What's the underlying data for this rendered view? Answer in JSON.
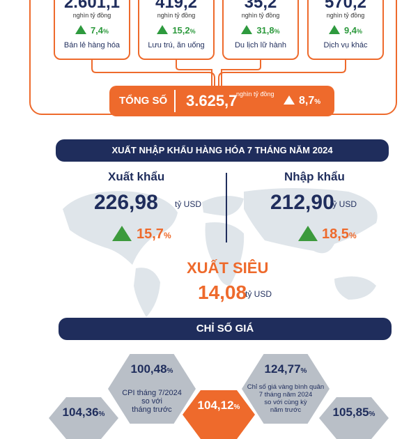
{
  "retail": {
    "items": [
      {
        "value": "2.601,1",
        "unit": "nghìn tỷ đồng",
        "growth": "7,4",
        "pct": "%",
        "label": "Bán lẻ hàng hóa"
      },
      {
        "value": "419,2",
        "unit": "nghìn tỷ đồng",
        "growth": "15,2",
        "pct": "%",
        "label": "Lưu trú, ăn uống"
      },
      {
        "value": "35,2",
        "unit": "nghìn tỷ đồng",
        "growth": "31,8",
        "pct": "%",
        "label": "Du lịch lữ hành"
      },
      {
        "value": "570,2",
        "unit": "nghìn tỷ đồng",
        "growth": "9,4",
        "pct": "%",
        "label": "Dịch vụ khác"
      }
    ],
    "total": {
      "label": "TỔNG SỐ",
      "value": "3.625,7",
      "unit": "nghìn tỷ đồng",
      "growth": "8,7",
      "pct": "%"
    }
  },
  "trade": {
    "title": "XUẤT NHẬP KHẨU HÀNG HÓA 7 THÁNG NĂM 2024",
    "export": {
      "label": "Xuất khẩu",
      "value": "226,98",
      "unit": "tỷ USD",
      "growth": "15,7",
      "pct": "%"
    },
    "import": {
      "label": "Nhập khẩu",
      "value": "212,90",
      "unit": "tỷ USD",
      "growth": "18,5",
      "pct": "%"
    },
    "surplus": {
      "label": "XUẤT SIÊU",
      "value": "14,08",
      "unit": "tỷ USD"
    }
  },
  "prices": {
    "title": "CHỈ SỐ GIÁ",
    "cpi_month": {
      "value": "100,48",
      "pct": "%",
      "line1": "CPI tháng 7/2024",
      "line2": "so với",
      "line3": "tháng trước"
    },
    "gold": {
      "value": "124,77",
      "pct": "%",
      "line1": "Chỉ số giá vàng bình quân",
      "line2": "7 tháng năm 2024",
      "line3": "so với cùng kỳ",
      "line4": "năm trước"
    },
    "center": {
      "value": "104,12",
      "pct": "%"
    },
    "left": {
      "value": "104,36",
      "pct": "%"
    },
    "right": {
      "value": "105,85",
      "pct": "%"
    }
  },
  "colors": {
    "navy": "#1f2d5c",
    "orange": "#ee6a2c",
    "green": "#2e9a3e",
    "grey": "#b9bfc7"
  }
}
